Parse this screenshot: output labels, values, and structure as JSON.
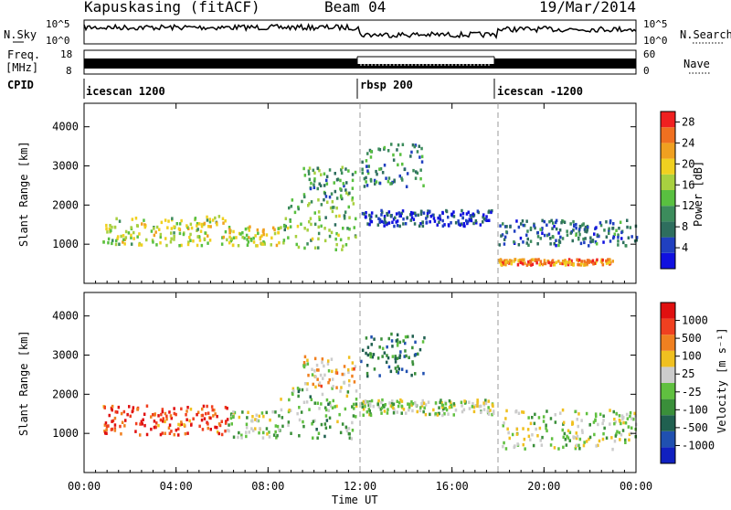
{
  "header": {
    "station": "Kapuskasing (fitACF)",
    "beam": "Beam 04",
    "date": "19/Mar/2014"
  },
  "top_panels": {
    "nsky_label": "N.Sky",
    "nsky_ticks": [
      "10^5",
      "10^0"
    ],
    "nsearch_label": "N.Search",
    "nsearch_ticks": [
      "10^5",
      "10^0"
    ],
    "freq_label_1": "Freq.",
    "freq_label_2": "[MHz]",
    "freq_ticks": [
      "18",
      "8"
    ],
    "nave_label": "Nave",
    "nave_ticks": [
      "60",
      "0"
    ],
    "cpid_label": "CPID",
    "cpid_segments": [
      {
        "name": "icescan 1200",
        "start": 0,
        "end": 12
      },
      {
        "name": "rbsp 200",
        "start": 12,
        "end": 18
      },
      {
        "name": "icescan -1200",
        "start": 18,
        "end": 24
      }
    ]
  },
  "colors": {
    "power": [
      "#1010e0",
      "#2040c0",
      "#2e6e5e",
      "#3c8c5c",
      "#59c040",
      "#a8d040",
      "#f0d020",
      "#f0a020",
      "#f07020",
      "#f02020"
    ],
    "velocity": [
      "#1020c0",
      "#2050b0",
      "#206050",
      "#3a8f3a",
      "#60c040",
      "#cccccc",
      "#f0c020",
      "#f08020",
      "#f04020",
      "#e01010"
    ]
  },
  "chart_data": [
    {
      "type": "heatmap",
      "title": "",
      "xlabel": "Time UT",
      "ylabel": "Slant Range [km]",
      "xlim": [
        0,
        24
      ],
      "ylim": [
        0,
        4600
      ],
      "x_ticks": [
        "00:00",
        "04:00",
        "08:00",
        "12:00",
        "16:00",
        "20:00",
        "00:00"
      ],
      "y_ticks": [
        "1000",
        "2000",
        "3000",
        "4000"
      ],
      "colorbar": {
        "label": "Power [dB]",
        "ticks": [
          "4",
          "8",
          "12",
          "16",
          "20",
          "24",
          "28"
        ],
        "range": [
          0,
          30
        ]
      },
      "regions": [
        {
          "t0": 0.8,
          "t1": 6.2,
          "r0": 1000,
          "r1": 1750,
          "level": 0.55
        },
        {
          "t0": 6.2,
          "t1": 8.5,
          "r0": 1000,
          "r1": 1500,
          "level": 0.6
        },
        {
          "t0": 8.5,
          "t1": 11.8,
          "r0": 900,
          "r1": 2200,
          "level": 0.45
        },
        {
          "t0": 9.5,
          "t1": 11.8,
          "r0": 2200,
          "r1": 3000,
          "level": 0.35
        },
        {
          "t0": 12.0,
          "t1": 17.8,
          "r0": 1500,
          "r1": 1900,
          "level": 0.12
        },
        {
          "t0": 12.0,
          "t1": 14.8,
          "r0": 2500,
          "r1": 3600,
          "level": 0.3
        },
        {
          "t0": 18.0,
          "t1": 24.0,
          "r0": 1000,
          "r1": 1650,
          "level": 0.25
        },
        {
          "t0": 18.0,
          "t1": 23.0,
          "r0": 500,
          "r1": 650,
          "level": 0.8
        }
      ]
    },
    {
      "type": "heatmap",
      "title": "",
      "xlabel": "Time UT",
      "ylabel": "Slant Range [km]",
      "xlim": [
        0,
        24
      ],
      "ylim": [
        0,
        4600
      ],
      "x_ticks": [
        "00:00",
        "04:00",
        "08:00",
        "12:00",
        "16:00",
        "20:00",
        "00:00"
      ],
      "y_ticks": [
        "1000",
        "2000",
        "3000",
        "4000"
      ],
      "colorbar": {
        "label": "Velocity [m s⁻¹]",
        "ticks": [
          "1000",
          "500",
          "100",
          "25",
          "-25",
          "-100",
          "-500",
          "-1000"
        ],
        "range": [
          -1000,
          1000
        ]
      },
      "regions": [
        {
          "t0": 0.8,
          "t1": 6.2,
          "r0": 1000,
          "r1": 1750,
          "level": 0.85
        },
        {
          "t0": 6.2,
          "t1": 8.5,
          "r0": 900,
          "r1": 1600,
          "level": 0.5
        },
        {
          "t0": 8.5,
          "t1": 11.8,
          "r0": 900,
          "r1": 2200,
          "level": 0.45
        },
        {
          "t0": 9.5,
          "t1": 11.8,
          "r0": 2200,
          "r1": 3000,
          "level": 0.65
        },
        {
          "t0": 12.0,
          "t1": 17.8,
          "r0": 1500,
          "r1": 1900,
          "level": 0.5
        },
        {
          "t0": 12.0,
          "t1": 14.8,
          "r0": 2500,
          "r1": 3600,
          "level": 0.3
        },
        {
          "t0": 18.0,
          "t1": 24.0,
          "r0": 600,
          "r1": 1650,
          "level": 0.52
        }
      ]
    }
  ]
}
